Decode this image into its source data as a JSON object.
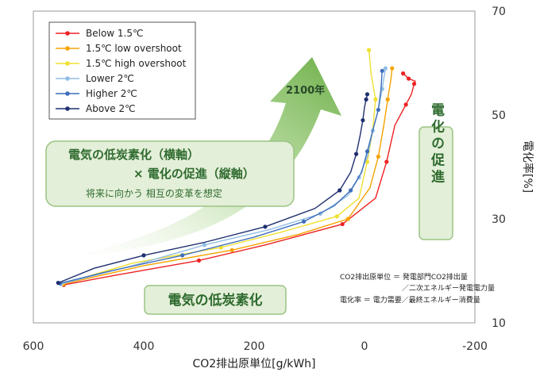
{
  "chart_data": {
    "type": "line",
    "xlabel": "CO2排出原単位[g/kWh]",
    "ylabel": "電化率[%]",
    "xlim": [
      600,
      -200
    ],
    "ylim": [
      10,
      70
    ],
    "x_ticks": [
      "600",
      "400",
      "200",
      "0",
      "-200"
    ],
    "y_ticks": [
      "10",
      "30",
      "50",
      "70"
    ],
    "grid": false,
    "legend_position": "top-left",
    "series": [
      {
        "name": "Below 1.5℃",
        "color": "#ee2222",
        "x": [
          545,
          460,
          300,
          180,
          40,
          -20,
          -40,
          -55,
          -75,
          -85,
          -90,
          -92,
          -80,
          -75,
          -70
        ],
        "y": [
          17.3,
          19.0,
          22.0,
          25.0,
          29.0,
          34.0,
          41.0,
          48.0,
          52.0,
          54.0,
          56.0,
          56.5,
          57.0,
          57.5,
          58.0
        ]
      },
      {
        "name": "1.5℃ low overshoot",
        "color": "#f5a300",
        "x": [
          545,
          400,
          240,
          120,
          30,
          -10,
          -25,
          -35,
          -42,
          -48,
          -50
        ],
        "y": [
          17.5,
          21.0,
          24.0,
          27.0,
          30.0,
          36.0,
          42.0,
          48.0,
          53.0,
          57.0,
          59.0
        ]
      },
      {
        "name": "1.5℃ high overshoot",
        "color": "#f0e030",
        "x": [
          548,
          420,
          260,
          150,
          50,
          10,
          -5,
          -15,
          -20,
          -12,
          -8
        ],
        "y": [
          17.5,
          21.5,
          24.5,
          27.5,
          30.5,
          34.0,
          41.0,
          47.0,
          53.0,
          58.0,
          62.5
        ]
      },
      {
        "name": "Lower 2℃",
        "color": "#92bde6",
        "x": [
          550,
          420,
          290,
          170,
          80,
          30,
          10,
          -5,
          -15,
          -25,
          -32,
          -38
        ],
        "y": [
          17.5,
          21.0,
          25.0,
          28.0,
          31.0,
          34.5,
          38.0,
          42.0,
          47.0,
          51.0,
          55.0,
          59.0
        ]
      },
      {
        "name": "Higher 2℃",
        "color": "#3f6fba",
        "x": [
          552,
          460,
          330,
          200,
          110,
          55,
          25,
          5,
          -5,
          -15,
          -25,
          -30,
          -32
        ],
        "y": [
          17.6,
          20.0,
          23.0,
          26.5,
          29.5,
          32.5,
          35.5,
          39.0,
          43.0,
          47.0,
          51.0,
          55.0,
          58.5
        ]
      },
      {
        "name": "Above 2℃",
        "color": "#1f2f6f",
        "x": [
          555,
          490,
          400,
          290,
          180,
          90,
          45,
          25,
          15,
          8,
          3,
          0,
          -3,
          -5
        ],
        "y": [
          17.7,
          20.5,
          23.0,
          25.5,
          28.5,
          32.0,
          35.5,
          39.0,
          42.5,
          46.0,
          49.0,
          51.5,
          53.0,
          54.0
        ]
      }
    ]
  },
  "annotations": {
    "arrow_label": "2100年",
    "box_line1": "電気の低炭素化（横軸）",
    "box_line2": "× 電化の促進（縦軸）",
    "box_line3": "将来に向かう 相互の変革を想定",
    "vertical_box": "電化の促進",
    "bottom_box": "電気の低炭素化",
    "note_line1": "CO2排出原単位 ＝ 発電部門CO2排出量",
    "note_line2": "／二次エネルギー発電電力量",
    "note_line3": "電化率 ＝ 電力需要／最終エネルギー消費量"
  },
  "colors": {
    "box_fill": "#e3efd8",
    "box_stroke": "#9bc383",
    "arrow_fill": "#8dc46a"
  }
}
